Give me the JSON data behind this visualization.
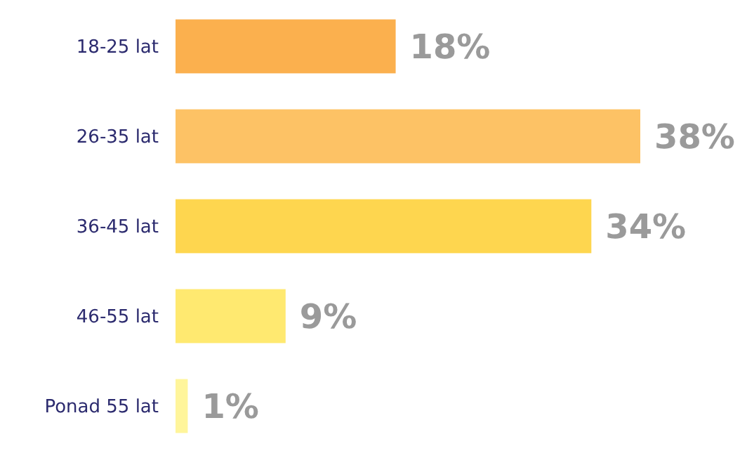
{
  "chart_data": {
    "type": "bar",
    "orientation": "horizontal",
    "categories": [
      "18-25 lat",
      "26-35 lat",
      "36-45 lat",
      "46-55 lat",
      "Ponad 55 lat"
    ],
    "values": [
      18,
      38,
      34,
      9,
      1
    ],
    "colors": [
      "#fbb04e",
      "#fdc265",
      "#fed64f",
      "#ffe970",
      "#fff59b"
    ],
    "value_labels": [
      "18%",
      "38%",
      "34%",
      "9%",
      "1%"
    ]
  }
}
